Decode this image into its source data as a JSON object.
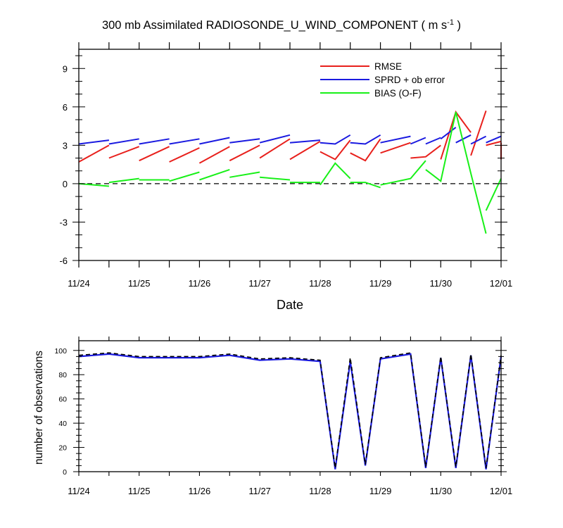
{
  "chart_data": [
    {
      "type": "line",
      "title_main": "300 mb Assimilated RADIOSONDE_U_WIND_COMPONENT ( m s",
      "title_sup": "-1",
      "title_end": " )",
      "xlabel": "Date",
      "ylabel": "",
      "x_tick_labels": [
        "11/24",
        "11/25",
        "11/26",
        "11/27",
        "11/28",
        "11/29",
        "11/30",
        "12/01"
      ],
      "ylim": [
        -6,
        10.5
      ],
      "y_ticks": [
        -6,
        -3,
        0,
        3,
        6,
        9
      ],
      "zero_line": "dashed",
      "legend_position": "top-right",
      "colors": {
        "RMSE": "#e8201c",
        "SPRD": "#1a1ae0",
        "BIAS": "#18f018",
        "zero": "#000000"
      },
      "series": [
        {
          "name": "RMSE",
          "segments": [
            [
              [
                0,
                1.7
              ],
              [
                0.5,
                3.0
              ]
            ],
            [
              [
                0.5,
                2.0
              ],
              [
                1.0,
                2.9
              ]
            ],
            [
              [
                1.0,
                1.8
              ],
              [
                1.5,
                2.9
              ]
            ],
            [
              [
                1.5,
                1.7
              ],
              [
                2.0,
                2.8
              ]
            ],
            [
              [
                2.0,
                1.6
              ],
              [
                2.5,
                2.9
              ]
            ],
            [
              [
                2.5,
                1.8
              ],
              [
                3.0,
                3.0
              ]
            ],
            [
              [
                3.0,
                2.0
              ],
              [
                3.5,
                3.5
              ]
            ],
            [
              [
                3.5,
                1.9
              ],
              [
                4.0,
                3.3
              ]
            ],
            [
              [
                4.0,
                2.5
              ],
              [
                4.25,
                1.9
              ],
              [
                4.5,
                3.4
              ]
            ],
            [
              [
                4.5,
                2.4
              ],
              [
                4.75,
                1.8
              ],
              [
                5.0,
                3.5
              ]
            ],
            [
              [
                5.0,
                2.4
              ],
              [
                5.5,
                3.2
              ]
            ],
            [
              [
                5.5,
                2.0
              ],
              [
                5.75,
                2.1
              ],
              [
                6.0,
                3.0
              ]
            ],
            [
              [
                6.0,
                1.9
              ],
              [
                6.25,
                5.6
              ],
              [
                6.5,
                4.0
              ]
            ],
            [
              [
                6.5,
                2.2
              ],
              [
                6.75,
                5.7
              ]
            ],
            [
              [
                6.75,
                3.0
              ],
              [
                7.0,
                3.3
              ]
            ],
            [
              [
                7.0,
                3.2
              ],
              [
                7.0,
                1.9
              ]
            ]
          ]
        },
        {
          "name": "SPRD + ob error",
          "segments": [
            [
              [
                0,
                3.1
              ],
              [
                0.5,
                3.4
              ]
            ],
            [
              [
                0.5,
                3.1
              ],
              [
                1.0,
                3.5
              ]
            ],
            [
              [
                1.0,
                3.1
              ],
              [
                1.5,
                3.5
              ]
            ],
            [
              [
                1.5,
                3.1
              ],
              [
                2.0,
                3.5
              ]
            ],
            [
              [
                2.0,
                3.1
              ],
              [
                2.5,
                3.6
              ]
            ],
            [
              [
                2.5,
                3.2
              ],
              [
                3.0,
                3.5
              ]
            ],
            [
              [
                3.0,
                3.2
              ],
              [
                3.5,
                3.8
              ]
            ],
            [
              [
                3.5,
                3.2
              ],
              [
                4.0,
                3.4
              ]
            ],
            [
              [
                4.0,
                3.2
              ],
              [
                4.25,
                3.1
              ],
              [
                4.5,
                3.8
              ]
            ],
            [
              [
                4.5,
                3.2
              ],
              [
                4.75,
                3.1
              ],
              [
                5.0,
                3.8
              ]
            ],
            [
              [
                5.0,
                3.2
              ],
              [
                5.5,
                3.7
              ]
            ],
            [
              [
                5.5,
                3.1
              ],
              [
                5.75,
                3.6
              ]
            ],
            [
              [
                5.75,
                3.1
              ],
              [
                6.0,
                3.6
              ]
            ],
            [
              [
                6.0,
                3.5
              ],
              [
                6.25,
                4.4
              ]
            ],
            [
              [
                6.25,
                3.2
              ],
              [
                6.5,
                3.8
              ]
            ],
            [
              [
                6.5,
                3.1
              ],
              [
                6.75,
                3.7
              ]
            ],
            [
              [
                6.75,
                3.2
              ],
              [
                7.0,
                3.7
              ]
            ]
          ]
        },
        {
          "name": "BIAS (O-F)",
          "segments": [
            [
              [
                0,
                0.0
              ],
              [
                0.5,
                -0.2
              ]
            ],
            [
              [
                0.5,
                0.1
              ],
              [
                1.0,
                0.4
              ]
            ],
            [
              [
                1.0,
                0.3
              ],
              [
                1.5,
                0.3
              ]
            ],
            [
              [
                1.5,
                0.2
              ],
              [
                2.0,
                0.9
              ]
            ],
            [
              [
                2.0,
                0.3
              ],
              [
                2.5,
                1.1
              ]
            ],
            [
              [
                2.5,
                0.5
              ],
              [
                3.0,
                0.9
              ]
            ],
            [
              [
                3.0,
                0.5
              ],
              [
                3.5,
                0.3
              ]
            ],
            [
              [
                3.5,
                0.1
              ],
              [
                4.0,
                0.1
              ]
            ],
            [
              [
                4.0,
                -0.1
              ],
              [
                4.25,
                1.6
              ],
              [
                4.5,
                0.4
              ]
            ],
            [
              [
                4.5,
                0.1
              ],
              [
                4.75,
                0.1
              ],
              [
                5.0,
                -0.3
              ]
            ],
            [
              [
                5.0,
                -0.1
              ],
              [
                5.5,
                0.4
              ],
              [
                5.75,
                1.8
              ]
            ],
            [
              [
                5.75,
                1.1
              ],
              [
                6.0,
                0.2
              ],
              [
                6.25,
                5.6
              ],
              [
                6.5,
                0.8
              ],
              [
                6.75,
                -3.9
              ]
            ],
            [
              [
                6.75,
                -2.1
              ],
              [
                7.0,
                0.4
              ]
            ]
          ]
        }
      ]
    },
    {
      "type": "line",
      "ylabel": "number of observations",
      "x_tick_labels": [
        "11/24",
        "11/25",
        "11/26",
        "11/27",
        "11/28",
        "11/29",
        "11/30",
        "12/01"
      ],
      "ylim": [
        0,
        108
      ],
      "y_ticks": [
        0,
        20,
        40,
        60,
        80,
        100
      ],
      "colors": {
        "solid": "#1a1ae0",
        "dashed": "#000000"
      },
      "series": [
        {
          "name": "observations (solid)",
          "x": [
            0,
            0.5,
            1,
            1.5,
            2,
            2.5,
            3,
            3.5,
            4,
            4.25,
            4.5,
            4.75,
            5,
            5.5,
            5.75,
            6,
            6.25,
            6.5,
            6.75,
            7
          ],
          "values": [
            95,
            97,
            94,
            94,
            94,
            96,
            92,
            93,
            91,
            2,
            91,
            5,
            93,
            97,
            3,
            94,
            3,
            96,
            2,
            95
          ]
        },
        {
          "name": "observations (dashed)",
          "x": [
            0,
            0.5,
            1,
            1.5,
            2,
            2.5,
            3,
            3.5,
            4,
            4.25,
            4.5,
            4.75,
            5,
            5.5,
            5.75,
            6,
            6.25,
            6.5,
            6.75,
            7
          ],
          "values": [
            96,
            98,
            95,
            95,
            95,
            97,
            93,
            94,
            92,
            3,
            94,
            6,
            94,
            98,
            4,
            95,
            4,
            97,
            3,
            96
          ]
        }
      ]
    }
  ]
}
